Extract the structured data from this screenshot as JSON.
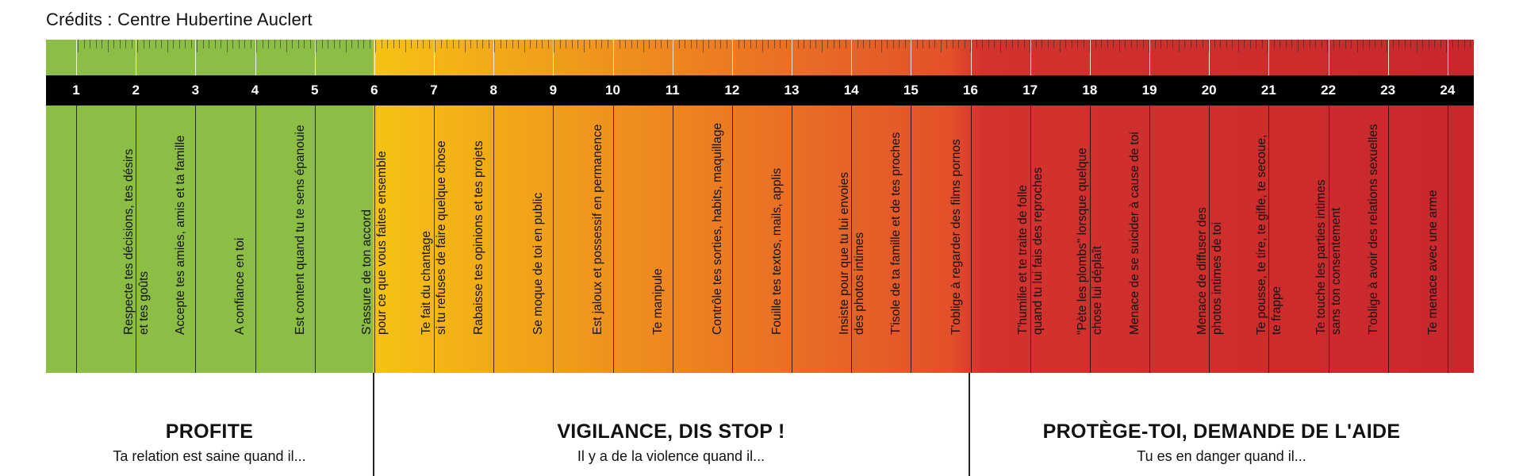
{
  "credits": "Crédits : Centre Hubertine Auclert",
  "scale": {
    "numbers": [
      "1",
      "2",
      "3",
      "4",
      "5",
      "6",
      "7",
      "8",
      "9",
      "10",
      "11",
      "12",
      "13",
      "14",
      "15",
      "16",
      "17",
      "18",
      "19",
      "20",
      "21",
      "22",
      "23",
      "24"
    ],
    "colors": {
      "green": "#8cbd45",
      "yellow": "#f5c313",
      "orange": "#ee8a1f",
      "red_orange": "#e3502a",
      "red": "#d3332d",
      "dark_red": "#c8282c",
      "bar": "#000000"
    }
  },
  "items": [
    {
      "n": "1",
      "text": "Respecte tes décisions, tes désirs\net tes goûts"
    },
    {
      "n": "2",
      "text": "Accepte tes amies, amis et ta famille"
    },
    {
      "n": "3",
      "text": "A confiance en toi"
    },
    {
      "n": "4",
      "text": "Est content quand tu te sens épanouie"
    },
    {
      "n": "5",
      "text": "S'assure de ton accord\npour ce que vous faites ensemble"
    },
    {
      "n": "6",
      "text": "Te fait du chantage\nsi tu refuses de faire quelque chose"
    },
    {
      "n": "7",
      "text": "Rabaisse tes opinions et tes projets"
    },
    {
      "n": "8",
      "text": "Se moque de toi en public"
    },
    {
      "n": "9",
      "text": "Est jaloux et possessif en permanence"
    },
    {
      "n": "10",
      "text": "Te manipule"
    },
    {
      "n": "11",
      "text": "Contrôle tes sorties, habits, maquillage"
    },
    {
      "n": "12",
      "text": "Fouille tes textos, mails, applis"
    },
    {
      "n": "13",
      "text": "Insiste pour que tu lui envoies\ndes photos intimes"
    },
    {
      "n": "14",
      "text": "T'isole de ta famille et de tes proches"
    },
    {
      "n": "15",
      "text": "T'oblige à regarder des films pornos"
    },
    {
      "n": "16",
      "text": "T'humilie et te traite de folle\nquand tu lui fais des reproches"
    },
    {
      "n": "17",
      "text": "\"Pète les plombs\" lorsque quelque\nchose lui déplaît"
    },
    {
      "n": "18",
      "text": "Menace de se suicider à cause de toi"
    },
    {
      "n": "19",
      "text": "Menace de diffuser des\nphotos intimes de toi"
    },
    {
      "n": "20",
      "text": "Te pousse, te tire, te gifle, te secoue,\nte frappe"
    },
    {
      "n": "21",
      "text": "Te touche les parties intimes\nsans ton consentement"
    },
    {
      "n": "22",
      "text": "T'oblige à avoir des relations sexuelles"
    },
    {
      "n": "23",
      "text": "Te menace avec une arme"
    }
  ],
  "sections": [
    {
      "title": "PROFITE",
      "subtitle": "Ta relation est saine quand il..."
    },
    {
      "title": "VIGILANCE, DIS STOP !",
      "subtitle": "Il y a de la violence quand il..."
    },
    {
      "title": "PROTÈGE-TOI, DEMANDE DE L'AIDE",
      "subtitle": "Tu es en danger quand il..."
    }
  ]
}
